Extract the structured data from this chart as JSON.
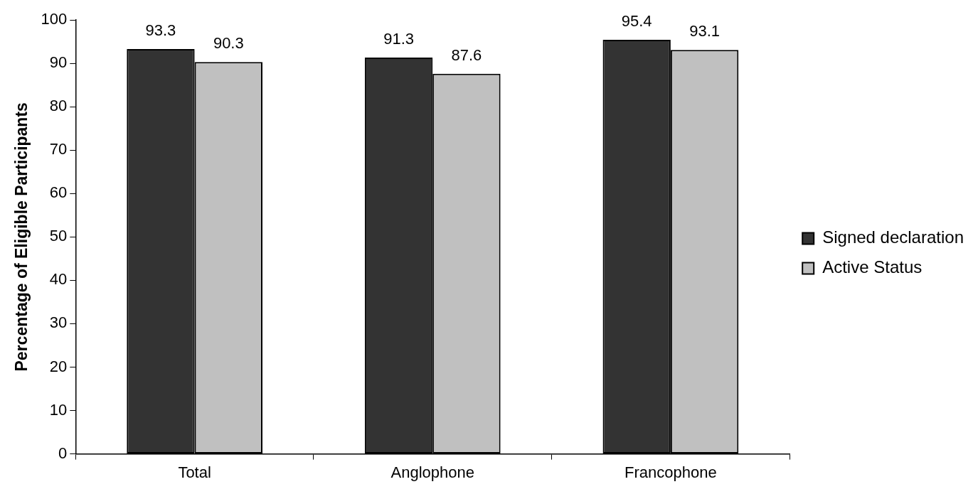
{
  "chart_data": {
    "type": "bar",
    "ylabel": "Percentage of Eligible Participants",
    "categories": [
      "Total",
      "Anglophone",
      "Francophone"
    ],
    "series": [
      {
        "name": "Signed declaration",
        "color": "#333333",
        "values": [
          93.3,
          91.3,
          95.4
        ]
      },
      {
        "name": "Active Status",
        "color": "#c0c0c0",
        "values": [
          90.3,
          87.6,
          93.1
        ]
      }
    ],
    "ylim": [
      0,
      100
    ],
    "yticks": [
      0,
      10,
      20,
      30,
      40,
      50,
      60,
      70,
      80,
      90,
      100
    ],
    "grid": false,
    "legend": "right",
    "data_labels": true
  }
}
